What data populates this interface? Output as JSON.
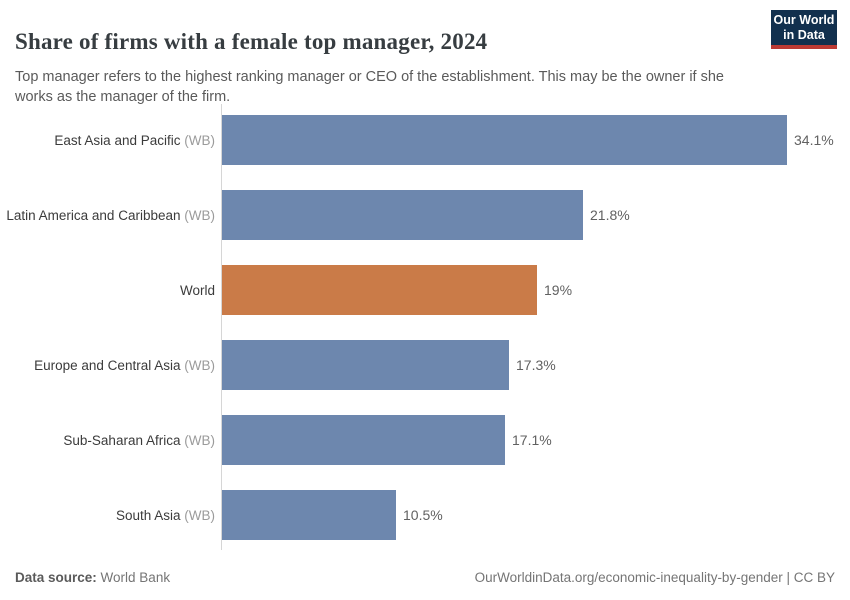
{
  "header": {
    "title": "Share of firms with a female top manager, 2024",
    "subtitle": "Top manager refers to the highest ranking manager or CEO of the establishment. This may be the owner if she works as the manager of the firm.",
    "logo": {
      "line1": "Our World",
      "line2": "in Data"
    }
  },
  "chart_data": {
    "type": "bar",
    "orientation": "horizontal",
    "title": "Share of firms with a female top manager, 2024",
    "categories": [
      "East Asia and Pacific",
      "Latin America and Caribbean",
      "World",
      "Europe and Central Asia",
      "Sub-Saharan Africa",
      "South Asia"
    ],
    "category_suffixes": [
      "(WB)",
      "(WB)",
      "",
      "(WB)",
      "(WB)",
      "(WB)"
    ],
    "values": [
      34.1,
      21.8,
      19,
      17.3,
      17.1,
      10.5
    ],
    "value_labels": [
      "34.1%",
      "21.8%",
      "19%",
      "17.3%",
      "17.1%",
      "10.5%"
    ],
    "unit": "%",
    "xmax": 34.1,
    "xlabel": "",
    "ylabel": "",
    "grid": false,
    "legend": "none",
    "highlight_index": 2,
    "bar_color": "#6d87ae",
    "highlight_color": "#ca7b48"
  },
  "footer": {
    "source_label": "Data source:",
    "source_value": "World Bank",
    "attribution": "OurWorldinData.org/economic-inequality-by-gender | CC BY"
  },
  "colors": {
    "bar_blue": "#6d87ae",
    "bar_orange": "#ca7b48",
    "axis_line": "#d6d6d6",
    "title_text": "#373d41",
    "subtitle_text": "#5a5a5a",
    "logo_navy": "#12304e",
    "logo_red": "#bc3a34"
  }
}
